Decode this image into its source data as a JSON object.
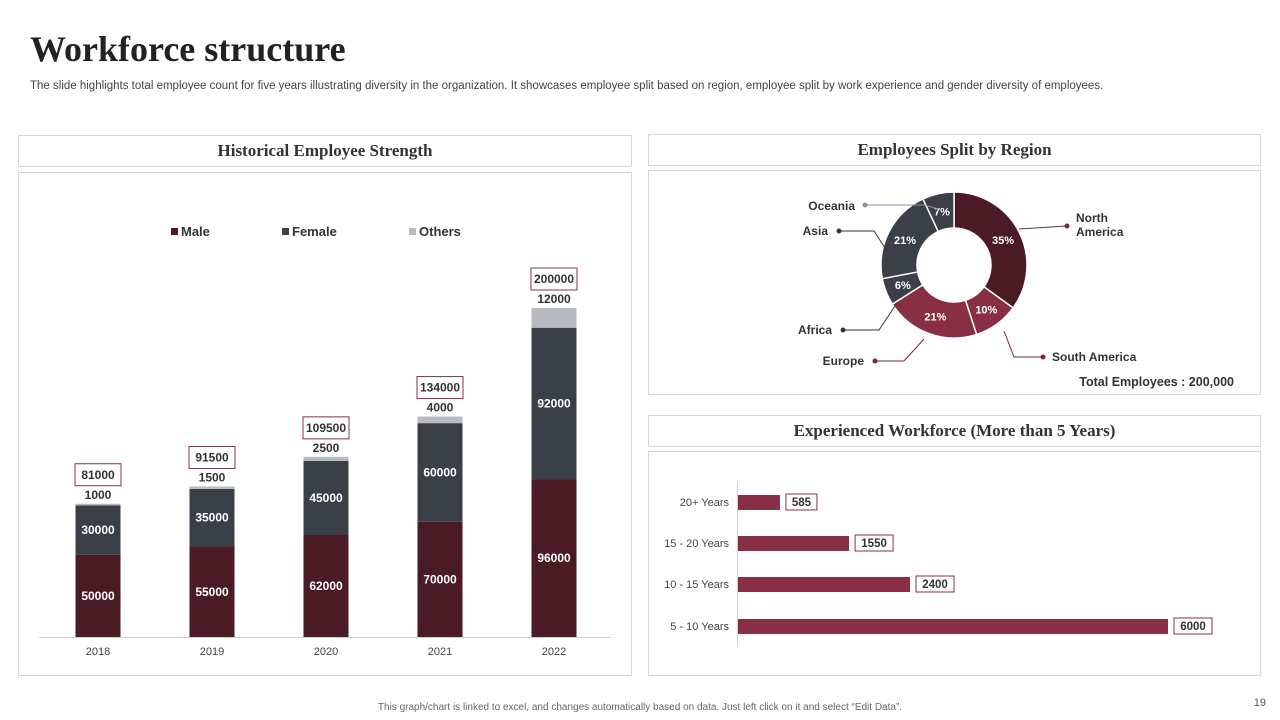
{
  "slide": {
    "title": "Workforce  structure",
    "subtitle": "The slide highlights total employee count for five years illustrating diversity in the organization. It showcases employee split based on region, employee split by work experience and gender diversity of employees.",
    "footer": "This graph/chart is linked to excel, and changes automatically based on data. Just left click on it and select “Edit Data”.",
    "page_number": "19"
  },
  "panels": {
    "historical_title": "Historical Employee Strength",
    "region_title": "Employees Split by Region",
    "experience_title": "Experienced Workforce (More than 5 Years)"
  },
  "colors": {
    "male": "#4a1b24",
    "female": "#3b3f48",
    "others": "#b7bac0",
    "region_dark": "#4a1b24",
    "region_mid": "#882f45",
    "region_grey": "#3b3f48",
    "exp_bar": "#882f45"
  },
  "chart_data": [
    {
      "type": "bar",
      "stacked": true,
      "title": "Historical Employee Strength",
      "categories": [
        "2018",
        "2019",
        "2020",
        "2021",
        "2022"
      ],
      "series": [
        {
          "name": "Male",
          "values": [
            50000,
            55000,
            62000,
            70000,
            96000
          ]
        },
        {
          "name": "Female",
          "values": [
            30000,
            35000,
            45000,
            60000,
            92000
          ]
        },
        {
          "name": "Others",
          "values": [
            1000,
            1500,
            2500,
            4000,
            12000
          ]
        }
      ],
      "totals": [
        81000,
        91500,
        109500,
        134000,
        200000
      ],
      "legend_position": "top",
      "ylim": [
        0,
        200000
      ]
    },
    {
      "type": "pie",
      "donut": true,
      "title": "Employees Split by Region",
      "slices": [
        {
          "label": "North America",
          "value": 35,
          "text": "35%"
        },
        {
          "label": "South America",
          "value": 10,
          "text": "10%"
        },
        {
          "label": "Europe",
          "value": 21,
          "text": "21%"
        },
        {
          "label": "Africa",
          "value": 6,
          "text": "6%"
        },
        {
          "label": "Asia",
          "value": 21,
          "text": "21%"
        },
        {
          "label": "Oceania",
          "value": 7,
          "text": "7%"
        }
      ],
      "total_label": "Total Employees : 200,000"
    },
    {
      "type": "bar",
      "orientation": "horizontal",
      "title": "Experienced Workforce (More than 5 Years)",
      "categories": [
        "20+ Years",
        "15 - 20 Years",
        "10 - 15 Years",
        "5 - 10 Years"
      ],
      "values": [
        585,
        1550,
        2400,
        6000
      ],
      "xlim": [
        0,
        6000
      ]
    }
  ]
}
